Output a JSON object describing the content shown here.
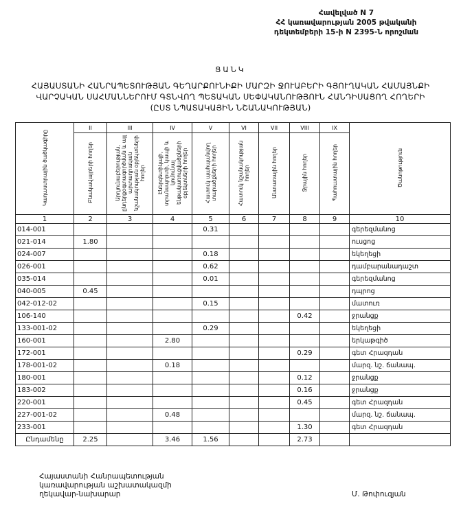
{
  "appendix": [
    "Հավելված N 7",
    "ՀՀ կառավարության 2005 թվականի",
    "դեկտեմբերի 15-ի N 2395-Ն որոշման"
  ],
  "list_title": "ՑԱՆԿ",
  "heading": [
    "ՀԱՅԱՍՏԱՆԻ ՀԱՆՐԱՊԵՏՈՒԹՅԱՆ ԳԵՂԱՐՔՈՒՆԻՔԻ ՄԱՐԶԻ ՋՈՒԱԲԵՐԻ ԳՅՈՒՂԱԿԱՆ ՀԱՄԱՅՆՔԻ",
    "ՎԱՐՉԱԿԱՆ ՍԱՀՄԱՆՆԵՐՈՒՄ  ԳՏՆՎՈՂ  ՊԵՏԱԿԱՆ ՍԵՓԱԿԱՆՈՒԹՅՈՒՆ  ՀԱՆԴԻՍԱՑՈՂ ՀՈՂԵՐԻ",
    "(ԸՍՏ ՆՊԱՏԱԿԱՅԻՆ ՆՇԱՆԱԿՈՒԹՅԱՆ)"
  ],
  "table": {
    "roman": [
      "II",
      "III",
      "IV",
      "V",
      "VI",
      "VII",
      "VIII",
      "IX"
    ],
    "headers": [
      "Կադաստրային ծածկագիրը",
      "Բնակավայրերի հողեր",
      "Արդյունաբերության, ընդերքօգտագործման և այլ արտադրական նշանակության օբյեկտների հողեր",
      "Էներգետիկայի, տրանսպորտի, կապի և կոմունալ ենթակառուցվածքների օբյեկտների հողեր",
      "Հատուկ պահպանվող տարածքների հողեր",
      "Հատուկ նշանակության հողեր",
      "Անտառային հողեր",
      "Ջրային հողեր",
      "Պահուստային հողեր",
      "Ծանոթություն"
    ],
    "numbers": [
      "1",
      "2",
      "3",
      "4",
      "5",
      "6",
      "7",
      "8",
      "9",
      "10"
    ],
    "rows": [
      [
        "014-001",
        "",
        "",
        "",
        "0.31",
        "",
        "",
        "",
        "",
        "գերեզմանոց"
      ],
      [
        "021-014",
        "1.80",
        "",
        "",
        "",
        "",
        "",
        "",
        "",
        "ուսցոց"
      ],
      [
        "024-007",
        "",
        "",
        "",
        "0.18",
        "",
        "",
        "",
        "",
        "եկեղեցի"
      ],
      [
        "026-001",
        "",
        "",
        "",
        "0.62",
        "",
        "",
        "",
        "",
        "դամբարանադաշտ"
      ],
      [
        "035-014",
        "",
        "",
        "",
        "0.01",
        "",
        "",
        "",
        "",
        "գերեզմանոց"
      ],
      [
        "040-005",
        "0.45",
        "",
        "",
        "",
        "",
        "",
        "",
        "",
        "դպրոց"
      ],
      [
        "042-012-02",
        "",
        "",
        "",
        "0.15",
        "",
        "",
        "",
        "",
        "մատուռ"
      ],
      [
        "106-140",
        "",
        "",
        "",
        "",
        "",
        "",
        "0.42",
        "",
        "ջրանցք"
      ],
      [
        "133-001-02",
        "",
        "",
        "",
        "0.29",
        "",
        "",
        "",
        "",
        "եկեղեցի"
      ],
      [
        "160-001",
        "",
        "",
        "2.80",
        "",
        "",
        "",
        "",
        "",
        "երկաթգիծ"
      ],
      [
        "172-001",
        "",
        "",
        "",
        "",
        "",
        "",
        "0.29",
        "",
        "գետ Հրազդան"
      ],
      [
        "178-001-02",
        "",
        "",
        "0.18",
        "",
        "",
        "",
        "",
        "",
        "մարզ. նշ. ճանապ."
      ],
      [
        "180-001",
        "",
        "",
        "",
        "",
        "",
        "",
        "0.12",
        "",
        "ջրանցք"
      ],
      [
        "183-002",
        "",
        "",
        "",
        "",
        "",
        "",
        "0.16",
        "",
        "ջրանցք"
      ],
      [
        "220-001",
        "",
        "",
        "",
        "",
        "",
        "",
        "0.45",
        "",
        "գետ Հրազդան"
      ],
      [
        "227-001-02",
        "",
        "",
        "0.48",
        "",
        "",
        "",
        "",
        "",
        "մարզ. նշ. ճանապ."
      ],
      [
        "233-001",
        "",
        "",
        "",
        "",
        "",
        "",
        "1.30",
        "",
        "գետ Հրազդան"
      ]
    ],
    "total": [
      "Ընդամենը",
      "2.25",
      "",
      "3.46",
      "1.56",
      "",
      "",
      "2.73",
      "",
      ""
    ]
  },
  "footer": [
    "Հայաստանի Հանրապետության",
    "կառավարության աշխատակազմի",
    "ղեկավար-նախարար"
  ],
  "signature": "Մ. Թոփուզյան"
}
